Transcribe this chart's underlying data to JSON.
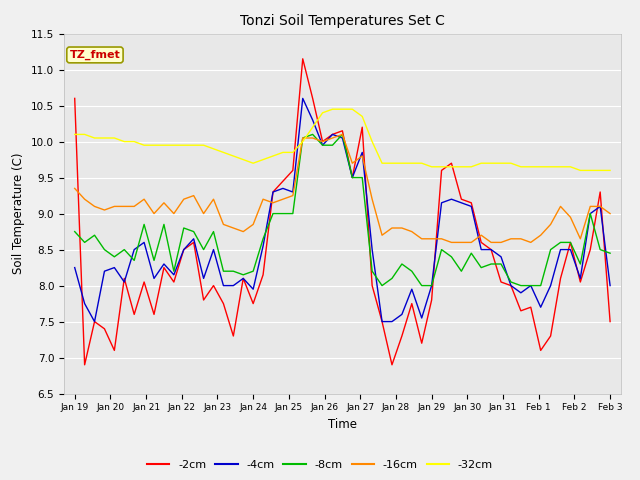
{
  "title": "Tonzi Soil Temperatures Set C",
  "xlabel": "Time",
  "ylabel": "Soil Temperature (C)",
  "ylim": [
    6.5,
    11.5
  ],
  "yticks": [
    6.5,
    7.0,
    7.5,
    8.0,
    8.5,
    9.0,
    9.5,
    10.0,
    10.5,
    11.0,
    11.5
  ],
  "x_labels": [
    "Jan 19",
    "Jan 20",
    "Jan 21",
    "Jan 22",
    "Jan 23",
    "Jan 24",
    "Jan 25",
    "Jan 26",
    "Jan 27",
    "Jan 28",
    "Jan 29",
    "Jan 30",
    "Jan 31",
    "Feb 1",
    "Feb 2",
    "Feb 3"
  ],
  "colors": {
    "-2cm": "#ff0000",
    "-4cm": "#0000cc",
    "-8cm": "#00bb00",
    "-16cm": "#ff8800",
    "-32cm": "#ffff00"
  },
  "legend_box_color": "#ffffcc",
  "legend_box_edge": "#999900",
  "annotation_text": "TZ_fmet",
  "annotation_color": "#cc0000",
  "plot_bg_color": "#e8e8e8",
  "fig_bg_color": "#f0f0f0",
  "grid_color": "#ffffff",
  "series": {
    "-2cm": [
      10.6,
      6.9,
      7.5,
      7.4,
      7.1,
      8.1,
      7.6,
      8.05,
      7.6,
      8.25,
      8.05,
      8.5,
      8.6,
      7.8,
      8.0,
      7.75,
      7.3,
      8.1,
      7.75,
      8.15,
      9.3,
      9.45,
      9.6,
      11.15,
      10.6,
      10.0,
      10.1,
      10.15,
      9.5,
      10.2,
      8.0,
      7.5,
      6.9,
      7.3,
      7.75,
      7.2,
      7.8,
      9.6,
      9.7,
      9.2,
      9.15,
      8.6,
      8.5,
      8.05,
      8.0,
      7.65,
      7.7,
      7.1,
      7.3,
      8.1,
      8.6,
      8.05,
      8.5,
      9.3,
      7.5
    ],
    "-4cm": [
      8.25,
      7.75,
      7.5,
      8.2,
      8.25,
      8.05,
      8.5,
      8.6,
      8.1,
      8.3,
      8.15,
      8.5,
      8.65,
      8.1,
      8.5,
      8.0,
      8.0,
      8.1,
      7.95,
      8.55,
      9.3,
      9.35,
      9.3,
      10.6,
      10.3,
      9.95,
      10.1,
      10.05,
      9.5,
      9.85,
      8.5,
      7.5,
      7.5,
      7.6,
      7.95,
      7.55,
      8.0,
      9.15,
      9.2,
      9.15,
      9.1,
      8.5,
      8.5,
      8.4,
      8.0,
      7.9,
      8.0,
      7.7,
      8.0,
      8.5,
      8.5,
      8.1,
      9.0,
      9.1,
      8.0
    ],
    "-8cm": [
      8.75,
      8.6,
      8.7,
      8.5,
      8.4,
      8.5,
      8.35,
      8.85,
      8.35,
      8.85,
      8.2,
      8.8,
      8.75,
      8.5,
      8.75,
      8.2,
      8.2,
      8.15,
      8.2,
      8.65,
      9.0,
      9.0,
      9.0,
      10.05,
      10.1,
      9.95,
      9.95,
      10.1,
      9.5,
      9.5,
      8.2,
      8.0,
      8.1,
      8.3,
      8.2,
      8.0,
      8.0,
      8.5,
      8.4,
      8.2,
      8.45,
      8.25,
      8.3,
      8.3,
      8.05,
      8.0,
      8.0,
      8.0,
      8.5,
      8.6,
      8.6,
      8.3,
      9.0,
      8.5,
      8.45
    ],
    "-16cm": [
      9.35,
      9.2,
      9.1,
      9.05,
      9.1,
      9.1,
      9.1,
      9.2,
      9.0,
      9.15,
      9.0,
      9.2,
      9.25,
      9.0,
      9.2,
      8.85,
      8.8,
      8.75,
      8.85,
      9.2,
      9.15,
      9.2,
      9.25,
      10.05,
      10.05,
      10.0,
      10.05,
      10.1,
      9.7,
      9.8,
      9.2,
      8.7,
      8.8,
      8.8,
      8.75,
      8.65,
      8.65,
      8.65,
      8.6,
      8.6,
      8.6,
      8.7,
      8.6,
      8.6,
      8.65,
      8.65,
      8.6,
      8.7,
      8.85,
      9.1,
      8.95,
      8.65,
      9.1,
      9.1,
      9.0
    ],
    "-32cm": [
      10.1,
      10.1,
      10.05,
      10.05,
      10.05,
      10.0,
      10.0,
      9.95,
      9.95,
      9.95,
      9.95,
      9.95,
      9.95,
      9.95,
      9.9,
      9.85,
      9.8,
      9.75,
      9.7,
      9.75,
      9.8,
      9.85,
      9.85,
      10.0,
      10.2,
      10.4,
      10.45,
      10.45,
      10.45,
      10.35,
      10.0,
      9.7,
      9.7,
      9.7,
      9.7,
      9.7,
      9.65,
      9.65,
      9.65,
      9.65,
      9.65,
      9.7,
      9.7,
      9.7,
      9.7,
      9.65,
      9.65,
      9.65,
      9.65,
      9.65,
      9.65,
      9.6,
      9.6,
      9.6,
      9.6
    ]
  }
}
